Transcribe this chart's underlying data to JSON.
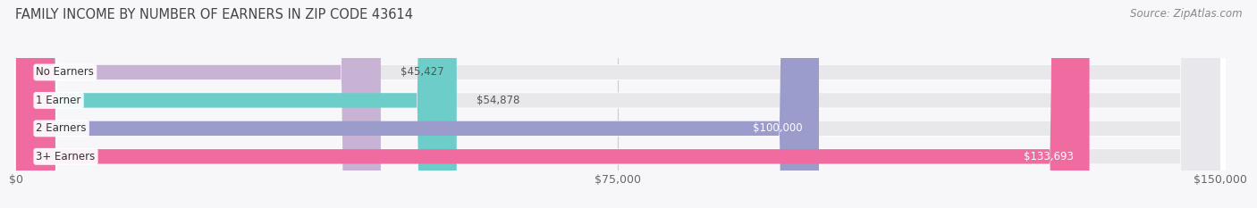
{
  "title": "FAMILY INCOME BY NUMBER OF EARNERS IN ZIP CODE 43614",
  "source": "Source: ZipAtlas.com",
  "categories": [
    "No Earners",
    "1 Earner",
    "2 Earners",
    "3+ Earners"
  ],
  "values": [
    45427,
    54878,
    100000,
    133693
  ],
  "value_labels": [
    "$45,427",
    "$54,878",
    "$100,000",
    "$133,693"
  ],
  "bar_colors": [
    "#c9b3d5",
    "#6dcec9",
    "#9b9bcc",
    "#f06ba0"
  ],
  "bar_bg_color": "#e8e8ec",
  "bar_border_color": "#ffffff",
  "background_color": "#f7f7f9",
  "xlim_max": 150000,
  "xticks": [
    0,
    75000,
    150000
  ],
  "xticklabels": [
    "$0",
    "$75,000",
    "$150,000"
  ],
  "title_fontsize": 10.5,
  "source_fontsize": 8.5,
  "label_fontsize": 8.5,
  "value_fontsize": 8.5,
  "tick_fontsize": 9,
  "value_inside_threshold": 60000
}
